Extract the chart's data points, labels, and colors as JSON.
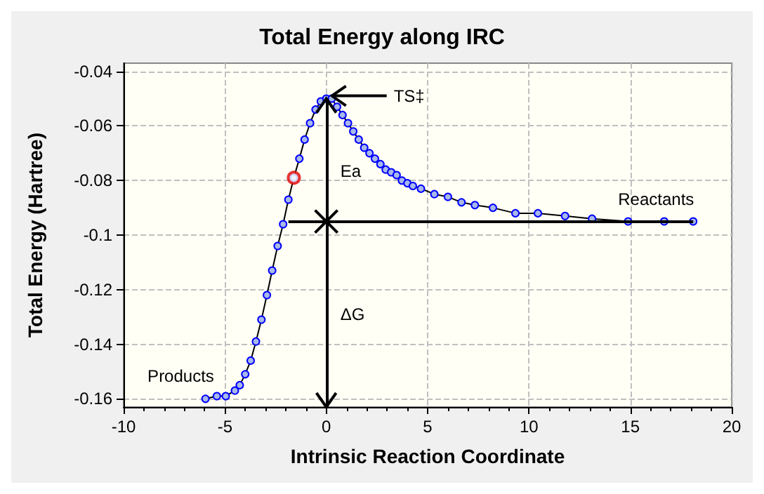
{
  "chart_data": {
    "type": "line",
    "title": "Total Energy along IRC",
    "xlabel": "Intrinsic Reaction Coordinate",
    "ylabel": "Total Energy (Hartree)",
    "xlim": [
      -10,
      20
    ],
    "xticks": [
      -10,
      -5,
      0,
      5,
      10,
      15,
      20
    ],
    "ylim": [
      -0.163,
      -0.037
    ],
    "yticks": [
      -0.16,
      -0.14,
      -0.12,
      -0.1,
      -0.08,
      -0.06,
      -0.04
    ],
    "grid": true,
    "marker": "circle",
    "line_style": "solid",
    "series": [
      {
        "color": "#0000ff",
        "x": [
          -5.96,
          -5.4,
          -4.96,
          -4.51,
          -4.27,
          -4.0,
          -3.73,
          -3.47,
          -3.2,
          -2.93,
          -2.67,
          -2.4,
          -2.13,
          -1.87,
          -1.6,
          -1.33,
          -1.07,
          -0.8,
          -0.53,
          -0.27,
          0,
          0.27,
          0.53,
          0.8,
          1.07,
          1.33,
          1.6,
          1.87,
          2.13,
          2.4,
          2.67,
          2.93,
          3.2,
          3.47,
          3.73,
          4.0,
          4.27,
          4.67,
          5.33,
          6.0,
          6.67,
          7.33,
          8.22,
          9.33,
          10.44,
          11.78,
          13.11,
          14.89,
          16.67,
          18.1
        ],
        "values": [
          -0.16,
          -0.159,
          -0.159,
          -0.157,
          -0.155,
          -0.151,
          -0.146,
          -0.139,
          -0.131,
          -0.122,
          -0.113,
          -0.104,
          -0.096,
          -0.087,
          -0.079,
          -0.072,
          -0.065,
          -0.059,
          -0.054,
          -0.051,
          -0.05,
          -0.05,
          -0.053,
          -0.056,
          -0.059,
          -0.062,
          -0.065,
          -0.068,
          -0.07,
          -0.072,
          -0.074,
          -0.076,
          -0.077,
          -0.078,
          -0.08,
          -0.081,
          -0.082,
          -0.083,
          -0.085,
          -0.086,
          -0.088,
          -0.089,
          -0.09,
          -0.092,
          -0.092,
          -0.093,
          -0.094,
          -0.095,
          -0.095,
          -0.095
        ]
      },
      {
        "type": "scatter",
        "color": "#e00000",
        "x": [
          -1.6
        ],
        "values": [
          -0.079
        ]
      }
    ],
    "ref_lines": [
      {
        "axis": "y",
        "value": -0.095,
        "color": "#000000"
      },
      {
        "axis": "x",
        "value": 0,
        "color": "#000000"
      }
    ],
    "annotations": [
      "TS‡",
      "Ea",
      "ΔG",
      {
        "text": "Products",
        "x": -6,
        "y": -0.16
      },
      {
        "text": "Reactants",
        "x": 18,
        "y": -0.095
      }
    ]
  }
}
